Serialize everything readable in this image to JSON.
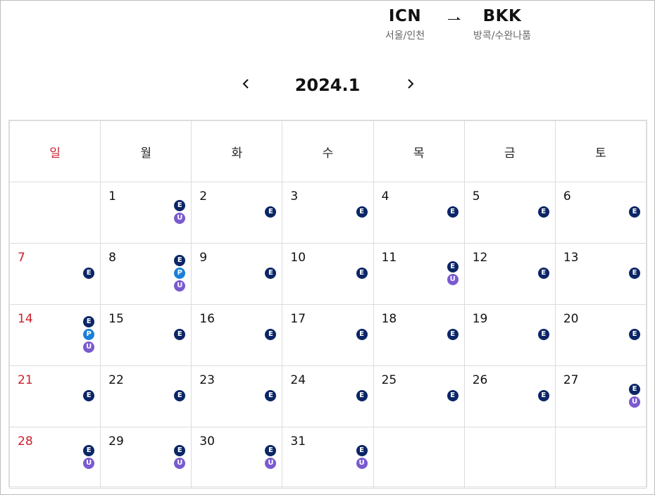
{
  "route": {
    "from": {
      "code": "ICN",
      "city": "서울/인천"
    },
    "to": {
      "code": "BKK",
      "city": "방콕/수완나품"
    },
    "arrow_icon": "plane-arrow-icon"
  },
  "month": {
    "title": "2024.1",
    "prev_icon": "chevron-left-icon",
    "next_icon": "chevron-right-icon"
  },
  "weekdays": [
    "일",
    "월",
    "화",
    "수",
    "목",
    "금",
    "토"
  ],
  "colors": {
    "sunday": "#cc1f2d",
    "E": "#0b2566",
    "P": "#1b7fd8",
    "U": "#7a5ad0"
  },
  "weeks": [
    [
      null,
      {
        "day": "1",
        "classes": [
          "E",
          "U"
        ]
      },
      {
        "day": "2",
        "classes": [
          "E"
        ]
      },
      {
        "day": "3",
        "classes": [
          "E"
        ]
      },
      {
        "day": "4",
        "classes": [
          "E"
        ]
      },
      {
        "day": "5",
        "classes": [
          "E"
        ]
      },
      {
        "day": "6",
        "classes": [
          "E"
        ]
      }
    ],
    [
      {
        "day": "7",
        "classes": [
          "E"
        ]
      },
      {
        "day": "8",
        "classes": [
          "E",
          "P",
          "U"
        ]
      },
      {
        "day": "9",
        "classes": [
          "E"
        ]
      },
      {
        "day": "10",
        "classes": [
          "E"
        ]
      },
      {
        "day": "11",
        "classes": [
          "E",
          "U"
        ]
      },
      {
        "day": "12",
        "classes": [
          "E"
        ]
      },
      {
        "day": "13",
        "classes": [
          "E"
        ]
      }
    ],
    [
      {
        "day": "14",
        "classes": [
          "E",
          "P",
          "U"
        ]
      },
      {
        "day": "15",
        "classes": [
          "E"
        ]
      },
      {
        "day": "16",
        "classes": [
          "E"
        ]
      },
      {
        "day": "17",
        "classes": [
          "E"
        ]
      },
      {
        "day": "18",
        "classes": [
          "E"
        ]
      },
      {
        "day": "19",
        "classes": [
          "E"
        ]
      },
      {
        "day": "20",
        "classes": [
          "E"
        ]
      }
    ],
    [
      {
        "day": "21",
        "classes": [
          "E"
        ]
      },
      {
        "day": "22",
        "classes": [
          "E"
        ]
      },
      {
        "day": "23",
        "classes": [
          "E"
        ]
      },
      {
        "day": "24",
        "classes": [
          "E"
        ]
      },
      {
        "day": "25",
        "classes": [
          "E"
        ]
      },
      {
        "day": "26",
        "classes": [
          "E"
        ]
      },
      {
        "day": "27",
        "classes": [
          "E",
          "U"
        ]
      }
    ],
    [
      {
        "day": "28",
        "classes": [
          "E",
          "U"
        ]
      },
      {
        "day": "29",
        "classes": [
          "E",
          "U"
        ]
      },
      {
        "day": "30",
        "classes": [
          "E",
          "U"
        ]
      },
      {
        "day": "31",
        "classes": [
          "E",
          "U"
        ]
      },
      null,
      null,
      null
    ]
  ]
}
